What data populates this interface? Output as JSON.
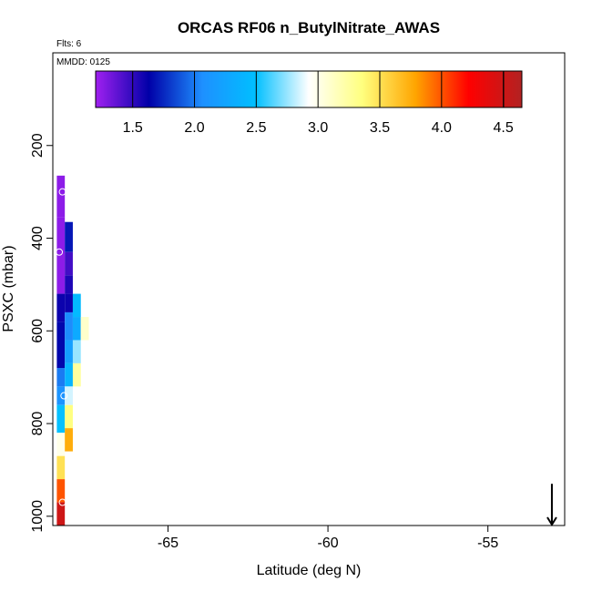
{
  "chart_data": {
    "type": "heatmap",
    "title": "ORCAS RF06 n_ButylNitrate_AWAS",
    "flights_note": "Flts: 6",
    "date_note": "MMDD: 0125",
    "xlabel": "Latitude (deg N)",
    "ylabel": "PSXC (mbar)",
    "xlim": [
      -68.6,
      -52.6
    ],
    "ylim": [
      1020,
      0
    ],
    "x_ticks": [
      -65,
      -60,
      -55
    ],
    "x_tick_labels": [
      "-65",
      "-60",
      "-55"
    ],
    "y_ticks": [
      200,
      400,
      600,
      800,
      1000
    ],
    "y_tick_labels": [
      "200",
      "400",
      "600",
      "800",
      "1000"
    ],
    "colorbar": {
      "min": 1.2,
      "max": 4.65,
      "ticks": [
        1.5,
        2.0,
        2.5,
        3.0,
        3.5,
        4.0,
        4.5
      ],
      "tick_labels": [
        "1.5",
        "2.0",
        "2.5",
        "3.0",
        "3.5",
        "4.0",
        "4.5"
      ],
      "color_stops": [
        "#a020f0",
        "#0000a8",
        "#1e90ff",
        "#00bfff",
        "#ffffff",
        "#ffff7f",
        "#ffa500",
        "#ff0000",
        "#b22222"
      ]
    },
    "cells": [
      {
        "lat": -68.35,
        "p0": 265,
        "p1": 355,
        "value": 1.25
      },
      {
        "lat": -68.35,
        "p0": 355,
        "p1": 520,
        "value": 1.25
      },
      {
        "lat": -68.35,
        "p0": 520,
        "p1": 580,
        "value": 1.6
      },
      {
        "lat": -68.35,
        "p0": 580,
        "p1": 680,
        "value": 1.65
      },
      {
        "lat": -68.35,
        "p0": 680,
        "p1": 720,
        "value": 2.0
      },
      {
        "lat": -68.35,
        "p0": 720,
        "p1": 760,
        "value": 2.1
      },
      {
        "lat": -68.35,
        "p0": 760,
        "p1": 820,
        "value": 2.5
      },
      {
        "lat": -68.35,
        "p0": 820,
        "p1": 870,
        "value": 3.0
      },
      {
        "lat": -68.35,
        "p0": 870,
        "p1": 920,
        "value": 3.5
      },
      {
        "lat": -68.35,
        "p0": 920,
        "p1": 970,
        "value": 4.0
      },
      {
        "lat": -68.35,
        "p0": 970,
        "p1": 1020,
        "value": 4.5
      },
      {
        "lat": -68.1,
        "p0": 365,
        "p1": 430,
        "value": 1.7
      },
      {
        "lat": -68.1,
        "p0": 430,
        "p1": 480,
        "value": 1.45
      },
      {
        "lat": -68.1,
        "p0": 480,
        "p1": 520,
        "value": 1.55
      },
      {
        "lat": -68.1,
        "p0": 520,
        "p1": 560,
        "value": 1.6
      },
      {
        "lat": -68.1,
        "p0": 560,
        "p1": 620,
        "value": 2.05
      },
      {
        "lat": -68.1,
        "p0": 620,
        "p1": 670,
        "value": 2.2
      },
      {
        "lat": -68.1,
        "p0": 670,
        "p1": 720,
        "value": 2.4
      },
      {
        "lat": -68.1,
        "p0": 720,
        "p1": 760,
        "value": 2.85
      },
      {
        "lat": -68.1,
        "p0": 760,
        "p1": 810,
        "value": 3.35
      },
      {
        "lat": -68.1,
        "p0": 810,
        "p1": 860,
        "value": 3.75
      },
      {
        "lat": -67.85,
        "p0": 520,
        "p1": 570,
        "value": 2.45
      },
      {
        "lat": -67.85,
        "p0": 570,
        "p1": 620,
        "value": 2.3
      },
      {
        "lat": -67.85,
        "p0": 620,
        "p1": 670,
        "value": 2.75
      },
      {
        "lat": -67.85,
        "p0": 670,
        "p1": 720,
        "value": 3.25
      },
      {
        "lat": -67.6,
        "p0": 570,
        "p1": 620,
        "value": 3.1
      }
    ],
    "points": [
      {
        "lat": -68.3,
        "p": 300
      },
      {
        "lat": -68.4,
        "p": 430
      },
      {
        "lat": -68.25,
        "p": 740
      },
      {
        "lat": -68.3,
        "p": 970
      }
    ],
    "arrow_marker": {
      "lat": -53.0,
      "p_top": 985
    }
  }
}
